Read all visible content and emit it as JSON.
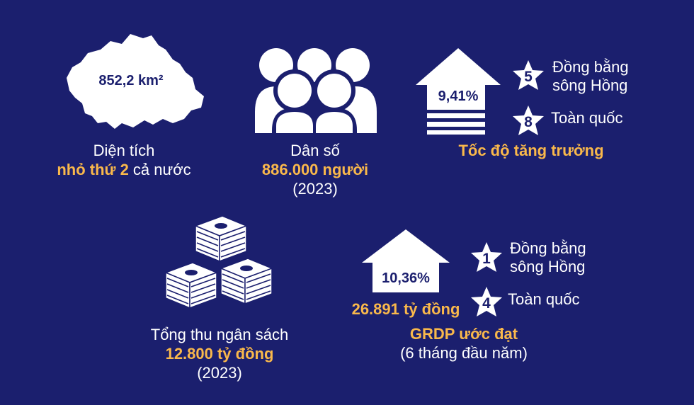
{
  "area": {
    "value": "852,2 km²",
    "label": "Diện tích",
    "rank_text": "nhỏ thứ 2",
    "rank_suffix": " cả nước"
  },
  "population": {
    "label": "Dân số",
    "value": "886.000 người",
    "year": "(2023)"
  },
  "growth": {
    "value": "9,41%",
    "title": "Tốc độ tăng trưởng",
    "ranks": [
      {
        "num": "5",
        "label": "Đồng bằng sông Hồng"
      },
      {
        "num": "8",
        "label": "Toàn quốc"
      }
    ]
  },
  "budget": {
    "label": "Tổng thu ngân sách",
    "value": "12.800 tỷ đồng",
    "year": "(2023)"
  },
  "grdp": {
    "value": "10,36%",
    "amount": "26.891 tỷ đồng",
    "title": "GRDP ước đạt",
    "period": "(6 tháng đầu năm)",
    "ranks": [
      {
        "num": "1",
        "label": "Đồng bằng sông Hồng"
      },
      {
        "num": "4",
        "label": "Toàn quốc"
      }
    ]
  },
  "colors": {
    "background": "#1b1f6e",
    "accent": "#f9b84b",
    "icon": "#ffffff"
  }
}
